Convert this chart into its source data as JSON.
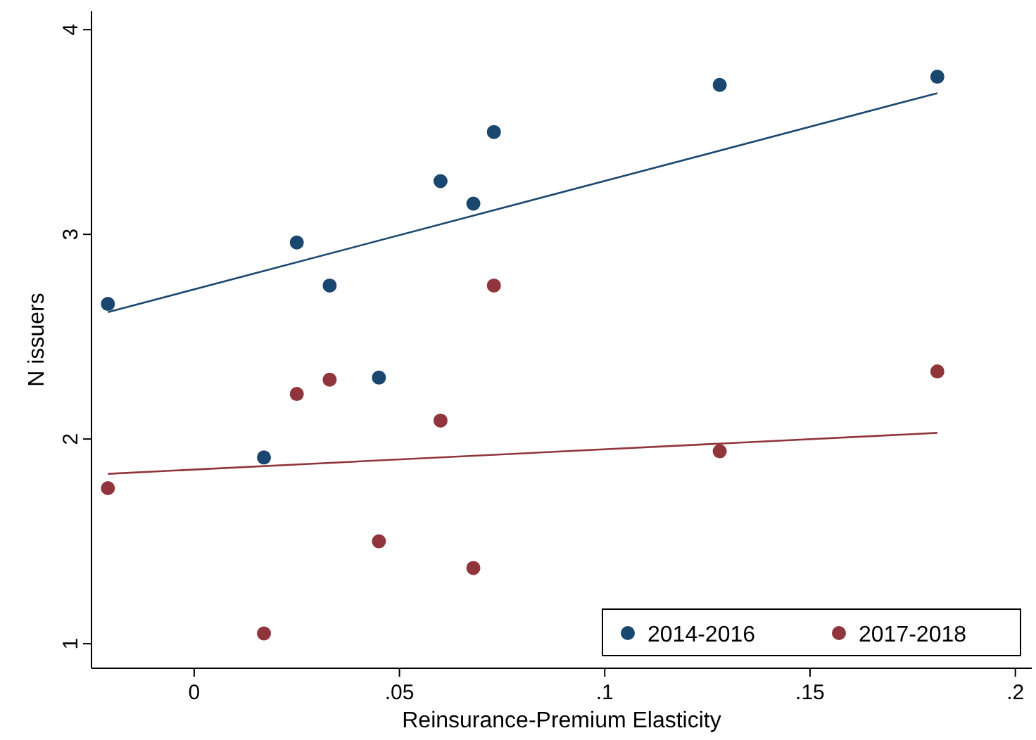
{
  "chart_data": {
    "type": "scatter",
    "xlabel": "Reinsurance-Premium Elasticity",
    "ylabel": "N issuers",
    "xlim": [
      -0.025,
      0.204
    ],
    "ylim": [
      0.88,
      4.09
    ],
    "xticks": [
      {
        "value": 0,
        "label": "0"
      },
      {
        "value": 0.05,
        "label": ".05"
      },
      {
        "value": 0.1,
        "label": ".1"
      },
      {
        "value": 0.15,
        "label": ".15"
      },
      {
        "value": 0.2,
        "label": ".2"
      }
    ],
    "yticks": [
      1,
      2,
      3,
      4
    ],
    "grid": false,
    "legend": "bottom right",
    "marker": "circle",
    "series": [
      {
        "name": "2014-2016",
        "color": "#1a476f",
        "x": [
          -0.021,
          0.017,
          0.025,
          0.033,
          0.045,
          0.06,
          0.068,
          0.073,
          0.128,
          0.181
        ],
        "values": [
          2.66,
          1.91,
          2.96,
          2.75,
          2.3,
          3.26,
          3.15,
          3.5,
          3.73,
          3.77
        ]
      },
      {
        "name": "2017-2018",
        "color": "#90353b",
        "x": [
          -0.021,
          0.017,
          0.025,
          0.033,
          0.045,
          0.06,
          0.068,
          0.073,
          0.128,
          0.181
        ],
        "values": [
          1.76,
          1.05,
          2.22,
          2.29,
          1.5,
          2.09,
          1.37,
          2.75,
          1.94,
          2.33
        ]
      },
      {
        "type": "line",
        "marker": "none",
        "color": "#1a476f",
        "x": [
          -0.021,
          0.181
        ],
        "values": [
          2.62,
          3.69
        ]
      },
      {
        "type": "line",
        "marker": "none",
        "color": "#90353b",
        "x": [
          -0.021,
          0.181
        ],
        "values": [
          1.83,
          2.03
        ]
      }
    ]
  }
}
